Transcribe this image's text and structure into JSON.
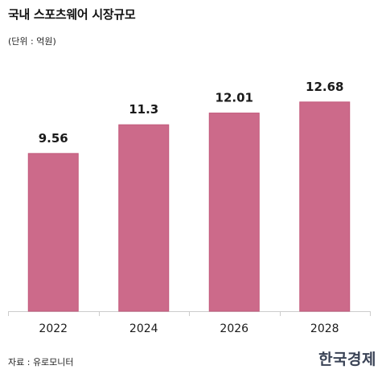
{
  "header": {
    "title": "국내 스포츠웨어 시장규모",
    "unit": "(단위 : 억원)"
  },
  "footer": {
    "source": "자료 : 유로모니터",
    "logo": "한국경제"
  },
  "colors": {
    "bar_fill": "#cc6a8a",
    "bar_stroke": "#c25a7c",
    "axis": "#cccccc"
  },
  "chart_data": {
    "type": "bar",
    "title": "국내 스포츠웨어 시장규모",
    "subtitle": "(단위 : 억원)",
    "xlabel": "",
    "ylabel": "",
    "categories": [
      "2022",
      "2024",
      "2026",
      "2028"
    ],
    "values": [
      9.56,
      11.3,
      12.01,
      12.68
    ],
    "value_labels": [
      "9.56",
      "11.3",
      "12.01",
      "12.68"
    ],
    "ylim": [
      0,
      13.5
    ],
    "grid": false,
    "legend": "none"
  }
}
